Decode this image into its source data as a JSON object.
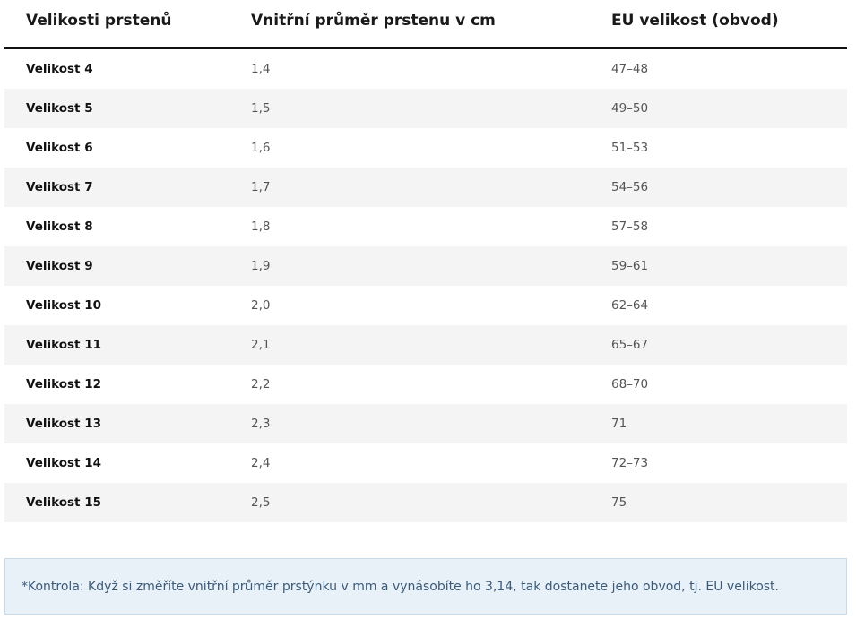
{
  "table": {
    "headers": {
      "size": "Velikosti prstenů",
      "diameter": "Vnitřní průměr prstenu v cm",
      "eu": "EU velikost (obvod)"
    },
    "rows": [
      {
        "size": "Velikost 4",
        "diameter": "1,4",
        "eu": "47–48"
      },
      {
        "size": "Velikost 5",
        "diameter": "1,5",
        "eu": "49–50"
      },
      {
        "size": "Velikost 6",
        "diameter": "1,6",
        "eu": "51–53"
      },
      {
        "size": "Velikost 7",
        "diameter": "1,7",
        "eu": "54–56"
      },
      {
        "size": "Velikost 8",
        "diameter": "1,8",
        "eu": "57–58"
      },
      {
        "size": "Velikost 9",
        "diameter": "1,9",
        "eu": "59–61"
      },
      {
        "size": "Velikost 10",
        "diameter": "2,0",
        "eu": "62–64"
      },
      {
        "size": "Velikost 11",
        "diameter": "2,1",
        "eu": "65–67"
      },
      {
        "size": "Velikost 12",
        "diameter": "2,2",
        "eu": "68–70"
      },
      {
        "size": "Velikost 13",
        "diameter": "2,3",
        "eu": "71"
      },
      {
        "size": "Velikost 14",
        "diameter": "2,4",
        "eu": "72–73"
      },
      {
        "size": "Velikost 15",
        "diameter": "2,5",
        "eu": "75"
      }
    ]
  },
  "note": {
    "text": "*Kontrola: Když si změříte vnitřní průměr prstýnku v mm a vynásobíte ho 3,14, tak dostanete jeho obvod, tj. EU velikost."
  },
  "colors": {
    "row_stripe": "#f4f4f4",
    "note_background": "#e9f1f8",
    "note_border": "#c8d9e8",
    "note_text": "#3b5a7a"
  }
}
